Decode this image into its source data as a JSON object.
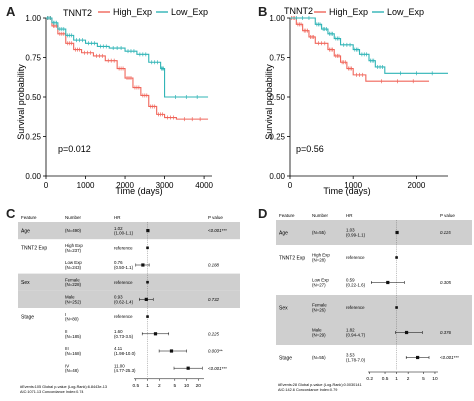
{
  "panels": {
    "A": {
      "letter": "A",
      "legend_title": "TNNT2",
      "pvalue": "p=0.012",
      "xlabel": "Time (days)",
      "ylabel": "Survival probability"
    },
    "B": {
      "letter": "B",
      "legend_title": "TNNT2",
      "pvalue": "p=0.56",
      "xlabel": "Time (days)",
      "ylabel": "Survival probability"
    },
    "C": {
      "letter": "C",
      "headers": [
        "Feature",
        "Number",
        "HR",
        "P value"
      ],
      "footer": [
        "#Events:105 Global p-value (Log-Rank):6.8443e-13",
        "AIC:1071.13 Concordance Index:0.74"
      ]
    },
    "D": {
      "letter": "D",
      "headers": [
        "Feature",
        "Number",
        "HR",
        "P value"
      ],
      "footer": [
        "#Events:28 Global p-value (Log-Rank):0.0030141",
        "AIC:142.6 Concordance Index:0.79"
      ]
    }
  },
  "colors": {
    "high": "#f0655a",
    "low": "#2fb4b6",
    "stripe": "#cfcfcf",
    "point": "#111111"
  },
  "chart_data": [
    {
      "type": "line",
      "panel": "A",
      "xlabel": "Time (days)",
      "ylabel": "Survival probability",
      "xlim": [
        0,
        4200
      ],
      "ylim": [
        0,
        1
      ],
      "xticks": [
        0,
        1000,
        2000,
        3000,
        4000
      ],
      "yticks": [
        0,
        0.25,
        0.5,
        0.75,
        1.0
      ],
      "legend": {
        "title": "TNNT2",
        "position": "top"
      },
      "series": [
        {
          "name": "High_Exp",
          "color": "#f0655a",
          "points": [
            [
              0,
              1
            ],
            [
              150,
              0.95
            ],
            [
              300,
              0.9
            ],
            [
              500,
              0.84
            ],
            [
              700,
              0.8
            ],
            [
              900,
              0.78
            ],
            [
              1200,
              0.76
            ],
            [
              1500,
              0.73
            ],
            [
              1800,
              0.68
            ],
            [
              2000,
              0.62
            ],
            [
              2200,
              0.56
            ],
            [
              2400,
              0.51
            ],
            [
              2600,
              0.44
            ],
            [
              2800,
              0.39
            ],
            [
              3000,
              0.37
            ],
            [
              3300,
              0.36
            ],
            [
              4100,
              0.36
            ]
          ]
        },
        {
          "name": "Low_Exp",
          "color": "#2fb4b6",
          "points": [
            [
              0,
              1
            ],
            [
              150,
              0.97
            ],
            [
              300,
              0.93
            ],
            [
              500,
              0.89
            ],
            [
              700,
              0.86
            ],
            [
              1000,
              0.84
            ],
            [
              1300,
              0.82
            ],
            [
              1600,
              0.81
            ],
            [
              2000,
              0.79
            ],
            [
              2300,
              0.77
            ],
            [
              2600,
              0.72
            ],
            [
              2900,
              0.68
            ],
            [
              3000,
              0.5
            ],
            [
              4100,
              0.5
            ]
          ]
        }
      ],
      "pvalue": "p=0.012"
    },
    {
      "type": "line",
      "panel": "B",
      "xlabel": "Time (days)",
      "ylabel": "Survival probability",
      "xlim": [
        0,
        2500
      ],
      "ylim": [
        0,
        1
      ],
      "xticks": [
        0,
        1000,
        2000
      ],
      "yticks": [
        0,
        0.25,
        0.5,
        0.75,
        1.0
      ],
      "legend": {
        "title": "TNNT2",
        "position": "top"
      },
      "series": [
        {
          "name": "High_Exp",
          "color": "#f0655a",
          "points": [
            [
              0,
              1
            ],
            [
              100,
              0.96
            ],
            [
              200,
              0.92
            ],
            [
              300,
              0.88
            ],
            [
              400,
              0.84
            ],
            [
              600,
              0.8
            ],
            [
              700,
              0.76
            ],
            [
              800,
              0.72
            ],
            [
              900,
              0.68
            ],
            [
              1000,
              0.64
            ],
            [
              1200,
              0.6
            ],
            [
              2200,
              0.6
            ]
          ]
        },
        {
          "name": "Low_Exp",
          "color": "#2fb4b6",
          "points": [
            [
              0,
              1
            ],
            [
              400,
              0.96
            ],
            [
              500,
              0.93
            ],
            [
              600,
              0.9
            ],
            [
              700,
              0.87
            ],
            [
              800,
              0.83
            ],
            [
              1000,
              0.8
            ],
            [
              1100,
              0.77
            ],
            [
              1250,
              0.73
            ],
            [
              1350,
              0.69
            ],
            [
              1500,
              0.65
            ],
            [
              2500,
              0.65
            ]
          ]
        }
      ],
      "pvalue": "p=0.56"
    },
    {
      "type": "table",
      "panel": "C",
      "xscale": "log",
      "xticks": [
        "0.5",
        "1",
        "2",
        "5",
        "10",
        "20"
      ],
      "rows": [
        {
          "feature": "Age",
          "number": "(N=490)",
          "hr": "1.02",
          "ci": "(1.00-1.1)",
          "p": "<0.001***",
          "est": 1.02,
          "lo": 1.0,
          "hi": 1.1
        },
        {
          "feature": "TNNT2 Exp",
          "number": "High Exp (N=237)",
          "hr": "reference",
          "ci": "",
          "p": "",
          "est": 1.0,
          "lo": null,
          "hi": null
        },
        {
          "feature": "",
          "number": "Low Exp (N=243)",
          "hr": "0.76",
          "ci": "(0.50-1.1)",
          "p": "0.188",
          "est": 0.76,
          "lo": 0.5,
          "hi": 1.1
        },
        {
          "feature": "Sex",
          "number": "Female (N=228)",
          "hr": "reference",
          "ci": "",
          "p": "",
          "est": 1.0,
          "lo": null,
          "hi": null
        },
        {
          "feature": "",
          "number": "Male (N=252)",
          "hr": "0.93",
          "ci": "(0.62-1.4)",
          "p": "0.732",
          "est": 0.93,
          "lo": 0.62,
          "hi": 1.4
        },
        {
          "feature": "Stage",
          "number": "I (N=80)",
          "hr": "reference",
          "ci": "",
          "p": "",
          "est": 1.0,
          "lo": null,
          "hi": null
        },
        {
          "feature": "",
          "number": "II (N=185)",
          "hr": "1.60",
          "ci": "(0.73-3.5)",
          "p": "0.225",
          "est": 1.6,
          "lo": 0.73,
          "hi": 3.5
        },
        {
          "feature": "",
          "number": "III (N=168)",
          "hr": "4.11",
          "ci": "(1.98-10.0)",
          "p": "0.003**",
          "est": 4.11,
          "lo": 1.98,
          "hi": 10.0
        },
        {
          "feature": "",
          "number": "IV (N=48)",
          "hr": "11.00",
          "ci": "(4.77-25.3)",
          "p": "<0.001***",
          "est": 11.0,
          "lo": 4.77,
          "hi": 25.3
        }
      ]
    },
    {
      "type": "table",
      "panel": "D",
      "xscale": "log",
      "xticks": [
        "0.2",
        "0.5",
        "1",
        "2",
        "5",
        "10"
      ],
      "rows": [
        {
          "feature": "Age",
          "number": "(N=55)",
          "hr": "1.03",
          "ci": "(0.99-1.1)",
          "p": "0.115",
          "est": 1.03,
          "lo": 0.99,
          "hi": 1.1
        },
        {
          "feature": "TNNT2 Exp",
          "number": "High Exp (N=28)",
          "hr": "reference",
          "ci": "",
          "p": "",
          "est": 1.0,
          "lo": null,
          "hi": null
        },
        {
          "feature": "",
          "number": "Low Exp (N=27)",
          "hr": "0.59",
          "ci": "(0.22-1.6)",
          "p": "0.305",
          "est": 0.59,
          "lo": 0.22,
          "hi": 1.6
        },
        {
          "feature": "Sex",
          "number": "Female (N=26)",
          "hr": "reference",
          "ci": "",
          "p": "",
          "est": 1.0,
          "lo": null,
          "hi": null
        },
        {
          "feature": "",
          "number": "Male (N=29)",
          "hr": "1.82",
          "ci": "(0.94-4.7)",
          "p": "0.376",
          "est": 1.82,
          "lo": 0.94,
          "hi": 4.7
        },
        {
          "feature": "Stage",
          "number": "(N=55)",
          "hr": "3.53",
          "ci": "(1.78-7.0)",
          "p": "<0.001***",
          "est": 3.53,
          "lo": 1.78,
          "hi": 7.0
        }
      ]
    }
  ]
}
